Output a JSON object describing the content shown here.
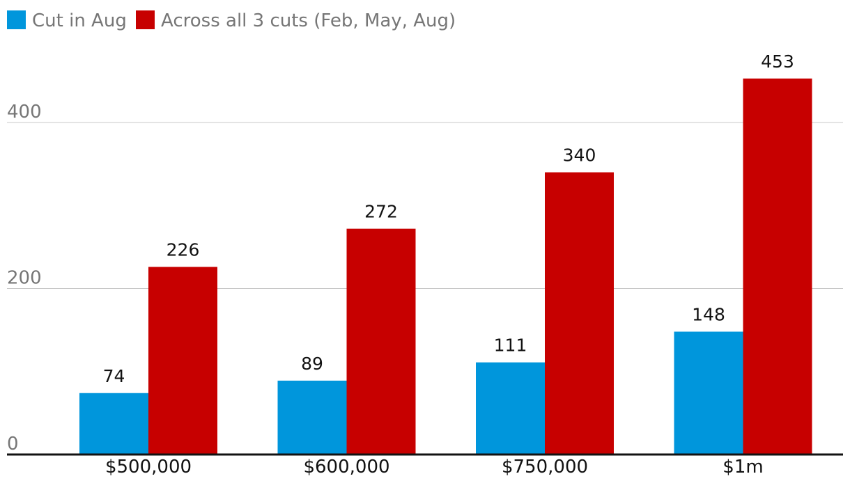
{
  "chart_data": {
    "type": "bar",
    "categories": [
      "$500,000",
      "$600,000",
      "$750,000",
      "$1m"
    ],
    "series": [
      {
        "name": "Cut in Aug",
        "values": [
          74,
          89,
          111,
          148
        ],
        "color": "#0096dc"
      },
      {
        "name": "Across all 3 cuts (Feb, May, Aug)",
        "values": [
          226,
          272,
          340,
          453
        ],
        "color": "#c70000"
      }
    ],
    "ylim": [
      0,
      453
    ],
    "yticks": [
      0,
      200,
      400
    ],
    "grid": true,
    "legend": "top-left",
    "colors": {
      "gridline": "#c8c8c8",
      "axis": "#121212",
      "tick_text": "#767676",
      "label_text": "#121212"
    }
  }
}
